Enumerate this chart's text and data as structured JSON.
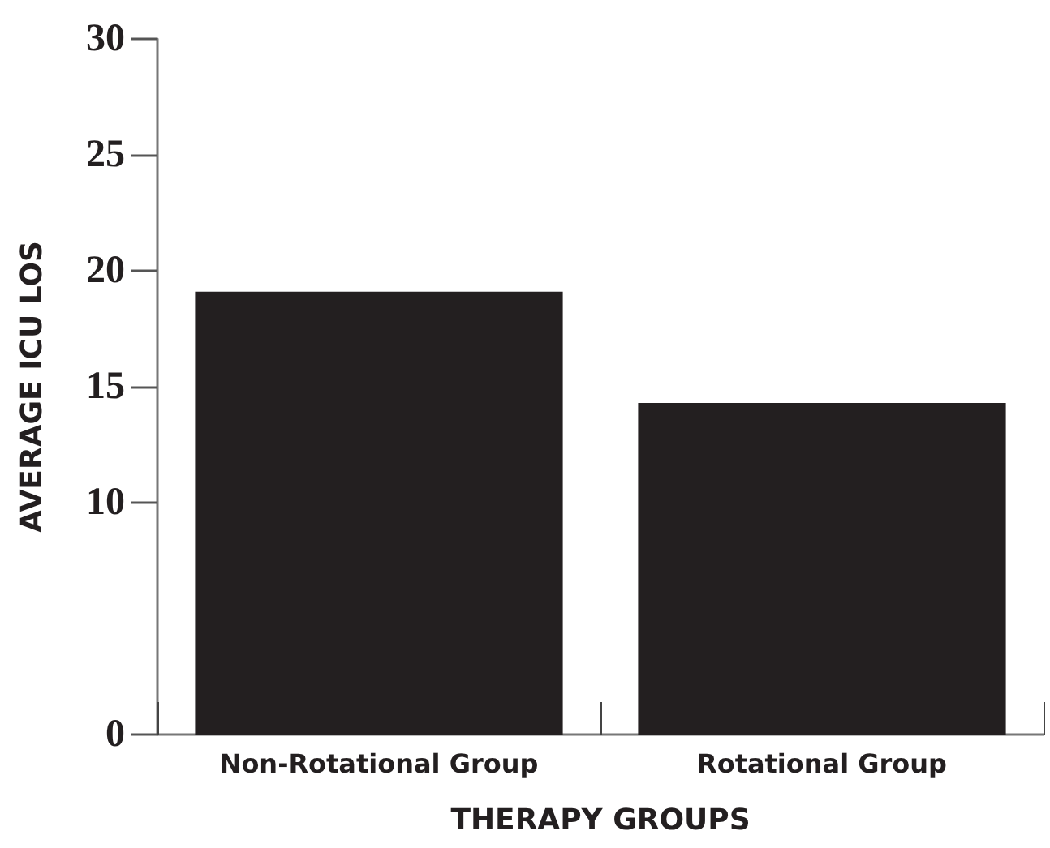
{
  "chart_data": {
    "type": "bar",
    "xlabel": "THERAPY GROUPS",
    "ylabel": "AVERAGE ICU LOS",
    "categories": [
      "Non-Rotational Group",
      "Rotational Group"
    ],
    "values": [
      19.1,
      14.3
    ],
    "color": "#231f20",
    "ylim": [
      0,
      30
    ],
    "yticks": [
      0,
      10,
      15,
      20,
      25,
      30
    ],
    "grid": false
  }
}
